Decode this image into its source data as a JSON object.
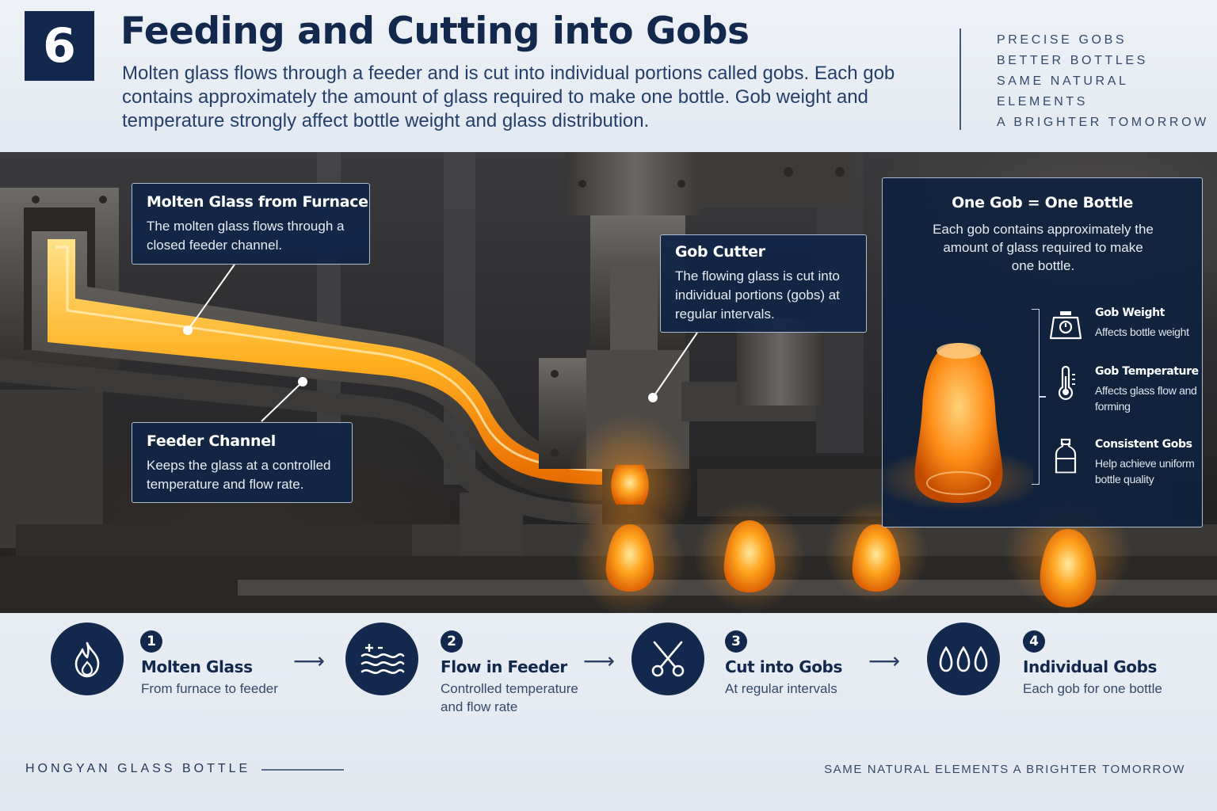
{
  "header": {
    "step_number": "6",
    "title": "Feeding and Cutting into Gobs",
    "intro": "Molten glass flows through a feeder and is cut into individual portions called gobs. Each gob contains approximately the amount of glass required to make one bottle. Gob weight and temperature strongly affect bottle weight and glass distribution.",
    "taglines": [
      "PRECISE GOBS",
      "BETTER BOTTLES",
      "SAME NATURAL",
      "ELEMENTS",
      "A BRIGHTER TOMORROW"
    ]
  },
  "callouts": {
    "furnace": {
      "title": "Molten Glass from Furnace",
      "text": "The molten glass flows through a closed feeder channel."
    },
    "feeder": {
      "title": "Feeder Channel",
      "text": "Keeps the glass at a controlled temperature and flow rate."
    },
    "cutter": {
      "title": "Gob Cutter",
      "text": "The flowing glass is cut into individual portions (gobs) at regular intervals."
    }
  },
  "panel": {
    "title": "One Gob = One Bottle",
    "text": "Each gob contains approximately the amount of glass required to make one bottle.",
    "features": [
      {
        "title": "Gob Weight",
        "text": "Affects bottle weight",
        "icon": "scale-icon"
      },
      {
        "title": "Gob Temperature",
        "text": "Affects glass flow and forming",
        "icon": "thermometer-icon"
      },
      {
        "title": "Consistent Gobs",
        "text": "Help achieve uniform bottle quality",
        "icon": "bottle-icon"
      }
    ]
  },
  "steps": [
    {
      "num": "1",
      "title": "Molten Glass",
      "text": "From furnace to feeder",
      "icon": "flame-icon"
    },
    {
      "num": "2",
      "title": "Flow in Feeder",
      "text": "Controlled temperature and flow rate",
      "icon": "waves-icon"
    },
    {
      "num": "3",
      "title": "Cut into Gobs",
      "text": "At regular intervals",
      "icon": "scissors-icon"
    },
    {
      "num": "4",
      "title": "Individual Gobs",
      "text": "Each gob for one bottle",
      "icon": "drops-icon"
    }
  ],
  "footer": {
    "brand": "HONGYAN GLASS BOTTLE",
    "slogan": "SAME NATURAL ELEMENTS A BRIGHTER TOMORROW"
  },
  "colors": {
    "navy": "#12294d",
    "glow": "#ff9a1a",
    "background": "#e9eef5"
  }
}
